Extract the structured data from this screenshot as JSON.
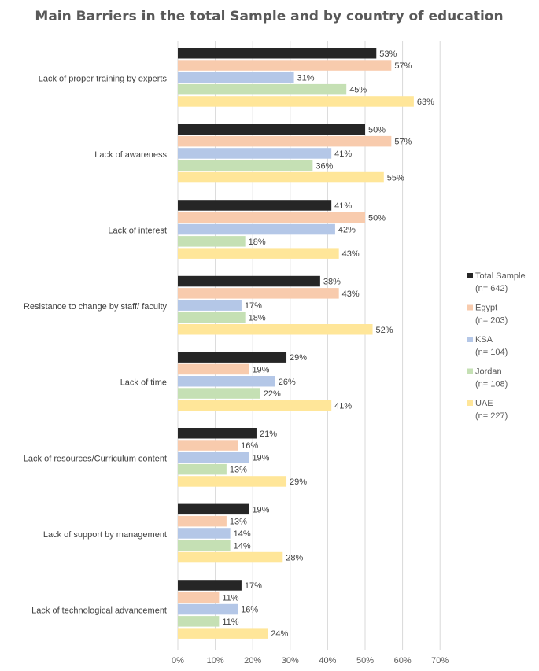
{
  "chart_data": {
    "type": "bar",
    "orientation": "horizontal",
    "title": "Main Barriers in the total Sample and by country of education",
    "categories": [
      "Lack of proper training by experts",
      "Lack of awareness",
      "Lack of interest",
      "Resistance to change by staff/ faculty",
      "Lack of time",
      "Lack of resources/Curriculum content",
      "Lack of support by management",
      "Lack of technological advancement"
    ],
    "series": [
      {
        "name": "Total Sample",
        "n_label": "(n= 642)",
        "color": "#262626",
        "values": [
          53,
          50,
          41,
          38,
          29,
          21,
          19,
          17
        ]
      },
      {
        "name": "Egypt",
        "n_label": "(n= 203)",
        "color": "#F8CBAD",
        "values": [
          57,
          57,
          50,
          43,
          19,
          16,
          13,
          11
        ]
      },
      {
        "name": "KSA",
        "n_label": "(n= 104)",
        "color": "#B4C7E7",
        "values": [
          31,
          41,
          42,
          17,
          26,
          19,
          14,
          16
        ]
      },
      {
        "name": "Jordan",
        "n_label": "(n= 108)",
        "color": "#C5E0B4",
        "values": [
          45,
          36,
          18,
          18,
          22,
          13,
          14,
          11
        ]
      },
      {
        "name": "UAE",
        "n_label": "(n= 227)",
        "color": "#FFE699",
        "values": [
          63,
          55,
          43,
          52,
          41,
          29,
          28,
          24
        ]
      }
    ],
    "x_ticks": [
      "0%",
      "10%",
      "20%",
      "30%",
      "40%",
      "50%",
      "60%",
      "70%"
    ],
    "xlim": [
      0,
      70
    ],
    "value_suffix": "%",
    "grid": true,
    "legend_position": "right"
  }
}
